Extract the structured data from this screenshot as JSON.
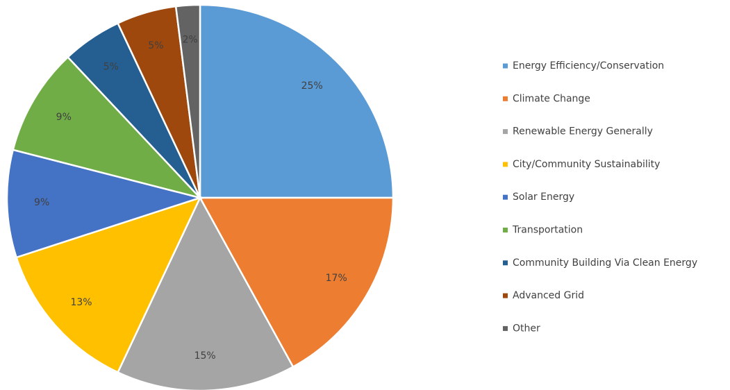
{
  "chart_data": {
    "type": "pie",
    "categories": [
      "Energy Efficiency/Conservation",
      "Climate Change",
      "Renewable Energy Generally",
      "City/Community Sustainability",
      "Solar Energy",
      "Transportation",
      "Community Building Via Clean Energy",
      "Advanced Grid",
      "Other"
    ],
    "values": [
      25,
      17,
      15,
      13,
      9,
      9,
      5,
      5,
      2
    ],
    "value_labels": [
      "25%",
      "17%",
      "15%",
      "13%",
      "9%",
      "9%",
      "5%",
      "5%",
      "2%"
    ],
    "colors": [
      "#5b9bd5",
      "#ed7d31",
      "#a5a5a5",
      "#ffc000",
      "#4472c4",
      "#70ad47",
      "#255e91",
      "#9e480e",
      "#636363"
    ],
    "legend": "right"
  }
}
